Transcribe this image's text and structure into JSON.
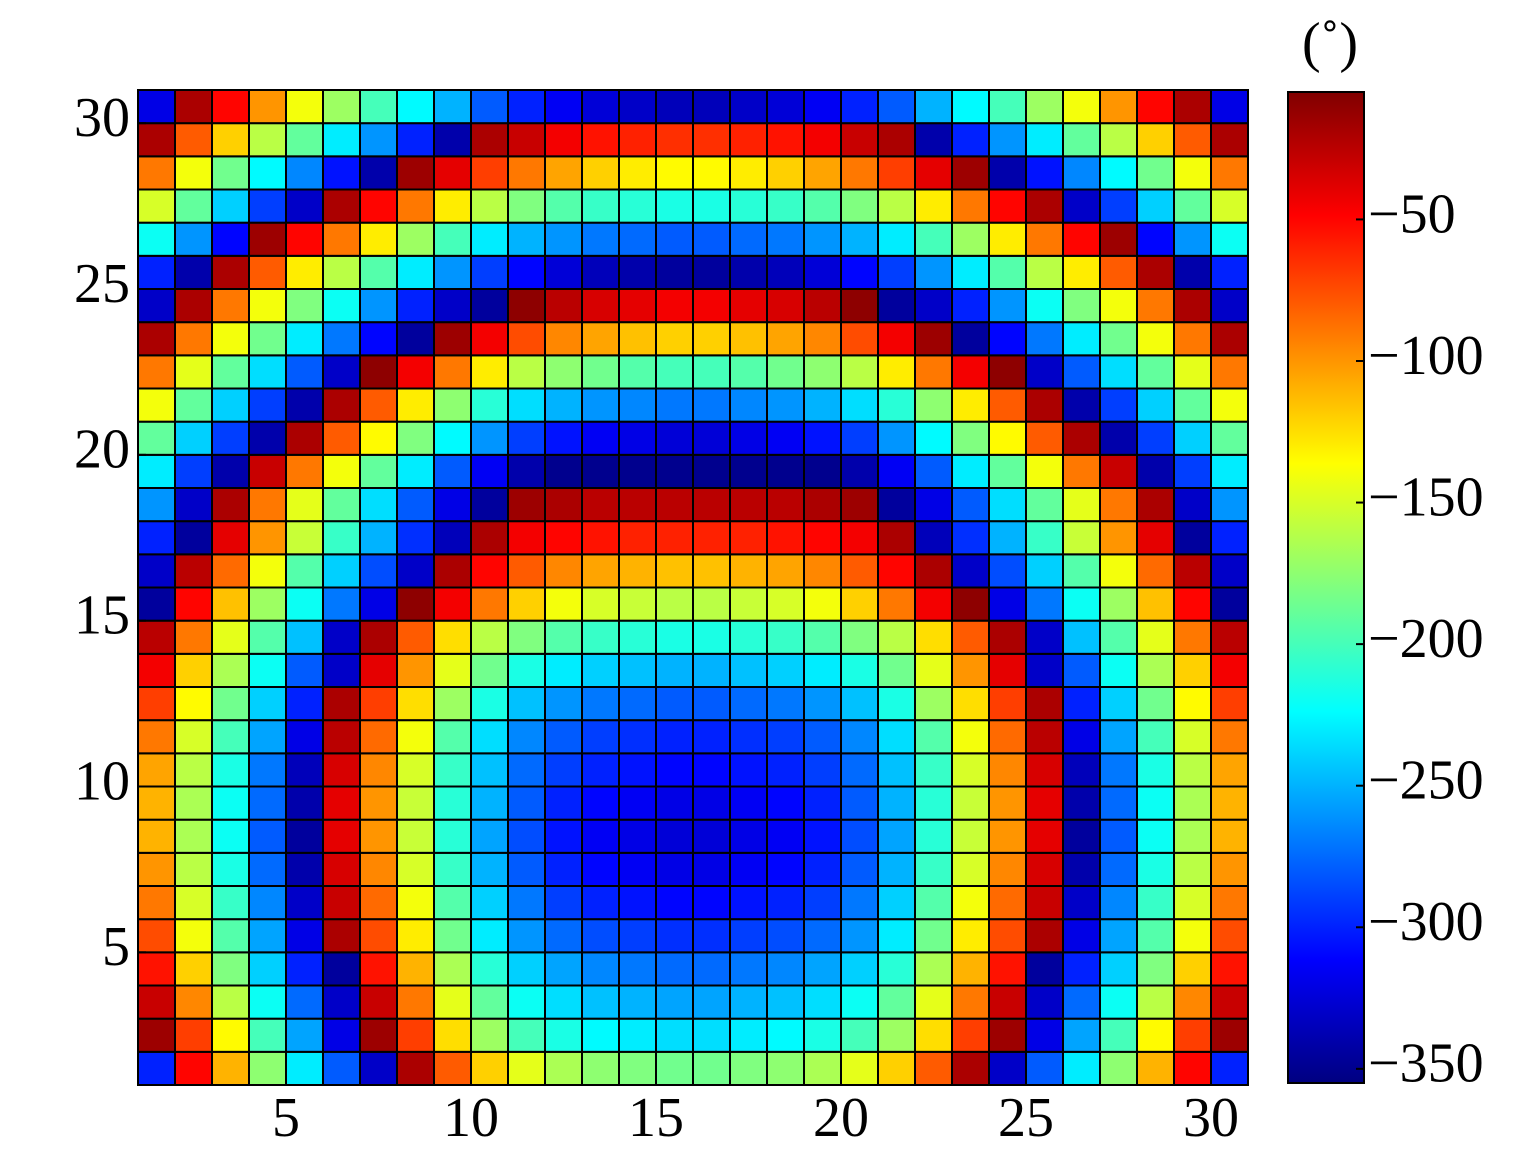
{
  "chart_data": {
    "type": "heatmap",
    "colormap": "jet",
    "xlim": [
      1,
      31
    ],
    "xticks": [
      5,
      10,
      15,
      20,
      25,
      30
    ],
    "ylim": [
      1,
      31
    ],
    "yticks": [
      5,
      10,
      15,
      20,
      25,
      30
    ],
    "colorbar": {
      "label": "(˚)",
      "lim": [
        -355,
        -5
      ],
      "ticks": [
        {
          "value": -350,
          "label": "−350"
        },
        {
          "value": -300,
          "label": "−300"
        },
        {
          "value": -250,
          "label": "−250"
        },
        {
          "value": -200,
          "label": "−200"
        },
        {
          "value": -150,
          "label": "−150"
        },
        {
          "value": -100,
          "label": "−100"
        },
        {
          "value": -50,
          "label": "−50"
        }
      ]
    },
    "values": [
      [
        -300,
        -50,
        -110,
        -175,
        -230,
        -280,
        -330,
        -20,
        -80,
        -120,
        -145,
        -165,
        -175,
        -180,
        -185,
        -185,
        -180,
        -175,
        -165,
        -145,
        -120,
        -80,
        -20,
        -330,
        -280,
        -230,
        -175,
        -110,
        -50,
        -300
      ],
      [
        -15,
        -70,
        -135,
        -200,
        -255,
        -320,
        -15,
        -70,
        -125,
        -170,
        -200,
        -215,
        -225,
        -230,
        -235,
        -235,
        -230,
        -225,
        -215,
        -200,
        -170,
        -125,
        -70,
        -15,
        -320,
        -255,
        -200,
        -135,
        -70,
        -15
      ],
      [
        -30,
        -95,
        -160,
        -220,
        -275,
        -330,
        -30,
        -90,
        -145,
        -190,
        -220,
        -235,
        -245,
        -250,
        -255,
        -255,
        -250,
        -245,
        -235,
        -220,
        -190,
        -145,
        -90,
        -30,
        -330,
        -275,
        -220,
        -160,
        -95,
        -30
      ],
      [
        -55,
        -120,
        -180,
        -240,
        -300,
        -345,
        -55,
        -110,
        -165,
        -210,
        -240,
        -255,
        -265,
        -270,
        -275,
        -275,
        -270,
        -265,
        -255,
        -240,
        -210,
        -165,
        -110,
        -55,
        -345,
        -300,
        -240,
        -180,
        -120,
        -55
      ],
      [
        -75,
        -140,
        -195,
        -255,
        -320,
        -20,
        -75,
        -130,
        -185,
        -230,
        -260,
        -275,
        -285,
        -290,
        -295,
        -295,
        -290,
        -285,
        -275,
        -260,
        -230,
        -185,
        -130,
        -75,
        -20,
        -320,
        -255,
        -195,
        -140,
        -75
      ],
      [
        -90,
        -150,
        -205,
        -265,
        -330,
        -30,
        -85,
        -140,
        -195,
        -240,
        -270,
        -290,
        -300,
        -305,
        -310,
        -310,
        -305,
        -300,
        -290,
        -270,
        -240,
        -195,
        -140,
        -85,
        -30,
        -330,
        -265,
        -205,
        -150,
        -90
      ],
      [
        -100,
        -160,
        -215,
        -275,
        -340,
        -35,
        -95,
        -150,
        -205,
        -250,
        -280,
        -300,
        -310,
        -315,
        -320,
        -320,
        -315,
        -310,
        -300,
        -280,
        -250,
        -205,
        -150,
        -95,
        -35,
        -340,
        -275,
        -215,
        -160,
        -100
      ],
      [
        -110,
        -165,
        -220,
        -280,
        -345,
        -40,
        -100,
        -155,
        -210,
        -255,
        -285,
        -305,
        -315,
        -320,
        -325,
        -325,
        -320,
        -315,
        -305,
        -285,
        -255,
        -210,
        -155,
        -100,
        -40,
        -345,
        -280,
        -220,
        -165,
        -110
      ],
      [
        -110,
        -165,
        -220,
        -275,
        -340,
        -40,
        -100,
        -155,
        -210,
        -250,
        -280,
        -300,
        -310,
        -315,
        -320,
        -320,
        -315,
        -310,
        -300,
        -280,
        -250,
        -210,
        -155,
        -100,
        -40,
        -340,
        -275,
        -220,
        -165,
        -110
      ],
      [
        -105,
        -160,
        -215,
        -270,
        -335,
        -35,
        -95,
        -150,
        -205,
        -245,
        -275,
        -290,
        -300,
        -305,
        -310,
        -310,
        -305,
        -300,
        -290,
        -275,
        -245,
        -205,
        -150,
        -95,
        -35,
        -335,
        -270,
        -215,
        -160,
        -105
      ],
      [
        -90,
        -150,
        -200,
        -255,
        -320,
        -25,
        -85,
        -140,
        -195,
        -235,
        -265,
        -280,
        -290,
        -295,
        -300,
        -300,
        -295,
        -290,
        -280,
        -265,
        -235,
        -195,
        -140,
        -85,
        -25,
        -320,
        -255,
        -200,
        -150,
        -90
      ],
      [
        -70,
        -135,
        -185,
        -240,
        -300,
        -20,
        -70,
        -125,
        -170,
        -215,
        -245,
        -260,
        -270,
        -275,
        -280,
        -280,
        -275,
        -270,
        -260,
        -245,
        -215,
        -170,
        -125,
        -70,
        -20,
        -300,
        -240,
        -185,
        -135,
        -70
      ],
      [
        -45,
        -120,
        -165,
        -220,
        -280,
        -330,
        -40,
        -100,
        -145,
        -185,
        -215,
        -230,
        -240,
        -245,
        -250,
        -250,
        -245,
        -240,
        -230,
        -215,
        -185,
        -145,
        -100,
        -40,
        -330,
        -280,
        -220,
        -165,
        -120,
        -45
      ],
      [
        -25,
        -90,
        -145,
        -195,
        -245,
        -330,
        -20,
        -80,
        -125,
        -160,
        -180,
        -195,
        -205,
        -210,
        -215,
        -215,
        -210,
        -205,
        -195,
        -180,
        -160,
        -125,
        -80,
        -20,
        -330,
        -245,
        -195,
        -145,
        -90,
        -25
      ],
      [
        -345,
        -50,
        -115,
        -170,
        -220,
        -270,
        -320,
        -10,
        -45,
        -90,
        -120,
        -140,
        -150,
        -155,
        -160,
        -160,
        -155,
        -150,
        -140,
        -120,
        -90,
        -45,
        -10,
        -320,
        -270,
        -220,
        -170,
        -115,
        -50,
        -345
      ],
      [
        -330,
        -25,
        -85,
        -140,
        -195,
        -240,
        -285,
        -330,
        -20,
        -50,
        -80,
        -95,
        -105,
        -110,
        -115,
        -115,
        -110,
        -105,
        -95,
        -80,
        -50,
        -20,
        -330,
        -285,
        -240,
        -195,
        -140,
        -85,
        -25,
        -330
      ],
      [
        -300,
        -345,
        -40,
        -100,
        -155,
        -205,
        -250,
        -295,
        -335,
        -20,
        -45,
        -50,
        -55,
        -60,
        -60,
        -60,
        -60,
        -55,
        -50,
        -45,
        -20,
        -335,
        -295,
        -250,
        -205,
        -155,
        -100,
        -40,
        -345,
        -300
      ],
      [
        -260,
        -330,
        -20,
        -90,
        -145,
        -190,
        -235,
        -280,
        -320,
        -345,
        -15,
        -20,
        -25,
        -25,
        -25,
        -25,
        -25,
        -25,
        -20,
        -15,
        -345,
        -320,
        -280,
        -235,
        -190,
        -145,
        -90,
        -20,
        -330,
        -260
      ],
      [
        -230,
        -290,
        -340,
        -30,
        -90,
        -140,
        -190,
        -230,
        -280,
        -315,
        -340,
        -350,
        -350,
        -350,
        -350,
        -350,
        -350,
        -350,
        -350,
        -340,
        -315,
        -280,
        -230,
        -190,
        -140,
        -90,
        -30,
        -340,
        -290,
        -230
      ],
      [
        -190,
        -240,
        -290,
        -340,
        -20,
        -80,
        -135,
        -180,
        -225,
        -260,
        -290,
        -305,
        -315,
        -320,
        -325,
        -325,
        -320,
        -315,
        -305,
        -290,
        -260,
        -225,
        -180,
        -135,
        -80,
        -20,
        -340,
        -290,
        -240,
        -190
      ],
      [
        -140,
        -190,
        -240,
        -290,
        -340,
        -20,
        -80,
        -130,
        -175,
        -210,
        -235,
        -250,
        -260,
        -265,
        -270,
        -270,
        -265,
        -260,
        -250,
        -235,
        -210,
        -175,
        -130,
        -80,
        -20,
        -340,
        -290,
        -240,
        -190,
        -140
      ],
      [
        -90,
        -145,
        -190,
        -235,
        -280,
        -330,
        -10,
        -45,
        -90,
        -130,
        -160,
        -175,
        -185,
        -195,
        -200,
        -200,
        -195,
        -185,
        -175,
        -160,
        -130,
        -90,
        -45,
        -10,
        -330,
        -280,
        -235,
        -190,
        -145,
        -90
      ],
      [
        -20,
        -90,
        -140,
        -185,
        -230,
        -270,
        -310,
        -345,
        -15,
        -45,
        -75,
        -95,
        -105,
        -115,
        -120,
        -120,
        -115,
        -105,
        -95,
        -75,
        -45,
        -15,
        -345,
        -310,
        -270,
        -230,
        -185,
        -140,
        -90,
        -20
      ],
      [
        -330,
        -20,
        -90,
        -140,
        -180,
        -220,
        -260,
        -300,
        -330,
        -345,
        -10,
        -25,
        -35,
        -40,
        -45,
        -45,
        -40,
        -35,
        -25,
        -10,
        -345,
        -330,
        -300,
        -260,
        -220,
        -180,
        -140,
        -90,
        -20,
        -330
      ],
      [
        -300,
        -340,
        -20,
        -80,
        -130,
        -160,
        -195,
        -230,
        -260,
        -290,
        -310,
        -325,
        -335,
        -340,
        -345,
        -345,
        -340,
        -335,
        -325,
        -310,
        -290,
        -260,
        -230,
        -195,
        -160,
        -130,
        -80,
        -20,
        -340,
        -300
      ],
      [
        -220,
        -260,
        -310,
        -15,
        -50,
        -90,
        -130,
        -170,
        -200,
        -230,
        -250,
        -260,
        -270,
        -275,
        -280,
        -280,
        -275,
        -270,
        -260,
        -250,
        -230,
        -200,
        -170,
        -130,
        -90,
        -50,
        -15,
        -310,
        -260,
        -220
      ],
      [
        -150,
        -190,
        -240,
        -290,
        -330,
        -20,
        -50,
        -90,
        -130,
        -160,
        -180,
        -195,
        -205,
        -210,
        -215,
        -215,
        -210,
        -205,
        -195,
        -180,
        -160,
        -130,
        -90,
        -50,
        -20,
        -330,
        -290,
        -240,
        -190,
        -150
      ],
      [
        -90,
        -140,
        -185,
        -225,
        -265,
        -305,
        -340,
        -15,
        -40,
        -70,
        -90,
        -105,
        -120,
        -130,
        -135,
        -135,
        -130,
        -120,
        -105,
        -90,
        -70,
        -40,
        -15,
        -340,
        -305,
        -265,
        -225,
        -185,
        -140,
        -90
      ],
      [
        -20,
        -80,
        -120,
        -160,
        -190,
        -230,
        -260,
        -300,
        -340,
        -20,
        -30,
        -45,
        -55,
        -60,
        -65,
        -65,
        -60,
        -55,
        -45,
        -30,
        -20,
        -340,
        -300,
        -260,
        -230,
        -190,
        -160,
        -120,
        -80,
        -20
      ],
      [
        -320,
        -20,
        -50,
        -100,
        -140,
        -170,
        -200,
        -225,
        -250,
        -280,
        -300,
        -315,
        -325,
        -330,
        -335,
        -335,
        -330,
        -325,
        -315,
        -300,
        -280,
        -250,
        -225,
        -200,
        -170,
        -140,
        -100,
        -50,
        -20,
        -320
      ]
    ]
  }
}
